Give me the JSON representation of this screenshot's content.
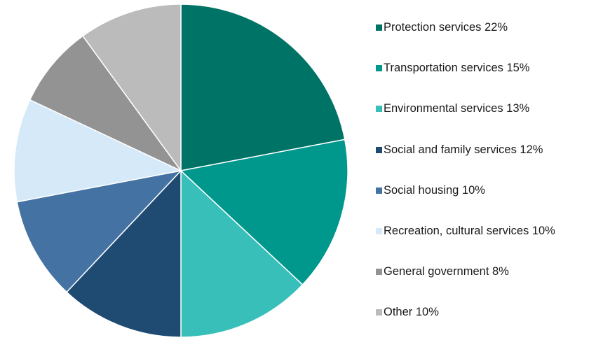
{
  "chart_data": {
    "type": "pie",
    "title": "",
    "legend_position": "right",
    "slices": [
      {
        "label": "Protection services 22%",
        "value": 22,
        "color": "#007367"
      },
      {
        "label": "Transportation services 15%",
        "value": 15,
        "color": "#00978C"
      },
      {
        "label": "Environmental services 13%",
        "value": 13,
        "color": "#38BFB9"
      },
      {
        "label": "Social and family services 12%",
        "value": 12,
        "color": "#1F4B73"
      },
      {
        "label": "Social housing 10%",
        "value": 10,
        "color": "#4472A3"
      },
      {
        "label": "Recreation, cultural services 10%",
        "value": 10,
        "color": "#D5E9F8"
      },
      {
        "label": "General government 8%",
        "value": 8,
        "color": "#939393"
      },
      {
        "label": "Other 10%",
        "value": 10,
        "color": "#BBBBBB"
      }
    ]
  }
}
